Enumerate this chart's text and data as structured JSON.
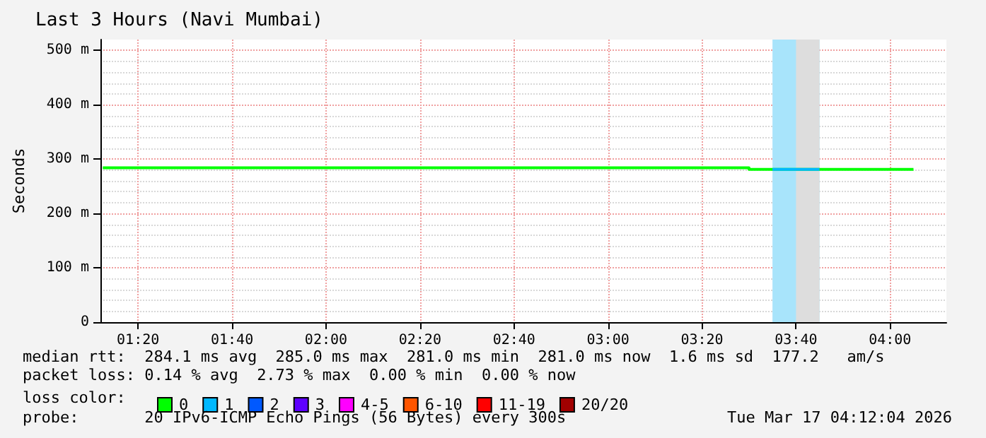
{
  "chart_data": {
    "type": "line",
    "title": "Last 3 Hours (Navi Mumbai)",
    "ylabel": "Seconds",
    "legend_title": "loss color:",
    "xlim": [
      1.2,
      4.2
    ],
    "xticks": [
      {
        "value": 1.3333,
        "label": "01:20"
      },
      {
        "value": 1.6667,
        "label": "01:40"
      },
      {
        "value": 2,
        "label": "02:00"
      },
      {
        "value": 2.3333,
        "label": "02:20"
      },
      {
        "value": 2.6667,
        "label": "02:40"
      },
      {
        "value": 3,
        "label": "03:00"
      },
      {
        "value": 3.3333,
        "label": "03:20"
      },
      {
        "value": 3.6667,
        "label": "03:40"
      },
      {
        "value": 4,
        "label": "04:00"
      }
    ],
    "ylim": [
      0,
      520
    ],
    "yticks": [
      0,
      {
        "value": 100,
        "label": "100 m"
      },
      {
        "value": 200,
        "label": "200 m"
      },
      {
        "value": 300,
        "label": "300 m"
      },
      {
        "value": 400,
        "label": "400 m"
      },
      {
        "value": 500,
        "label": "500 m"
      }
    ],
    "grid": true,
    "legend": "bottom",
    "series": [
      {
        "name": "0",
        "color": "#00ff00",
        "x": [
          1.2083,
          3.5,
          3.5,
          4.0833
        ],
        "values": [
          284,
          284,
          281,
          281
        ]
      },
      {
        "name": "1",
        "color": "#00b8ff",
        "x": [
          3.5833,
          3.75
        ],
        "values": [
          281,
          281
        ]
      },
      {
        "name": "2",
        "color": "#0059ff"
      },
      {
        "name": "3",
        "color": "#5e00ff"
      },
      {
        "name": "4-5",
        "color": "#ff00ff"
      },
      {
        "name": "6-10",
        "color": "#ff5500"
      },
      {
        "name": "11-19",
        "color": "#ff0000"
      },
      {
        "name": "20/20",
        "color": "#a10000"
      }
    ],
    "bands": [
      {
        "axis": "x",
        "from": 3.5833,
        "to": 3.75,
        "color": "#a8e4fb"
      },
      {
        "axis": "x",
        "from": 3.6667,
        "to": 3.75,
        "color": "#dddddd"
      }
    ],
    "annotations": [
      "median rtt:  284.1 ms avg  285.0 ms max  281.0 ms min  281.0 ms now  1.6 ms sd  177.2   am/s",
      "packet loss: 0.14 % avg  2.73 % max  0.00 % min  0.00 % now",
      "probe:       20 IPv6-ICMP Echo Pings (56 Bytes) every 300s",
      "Tue Mar 17 04:12:04 2026"
    ]
  }
}
